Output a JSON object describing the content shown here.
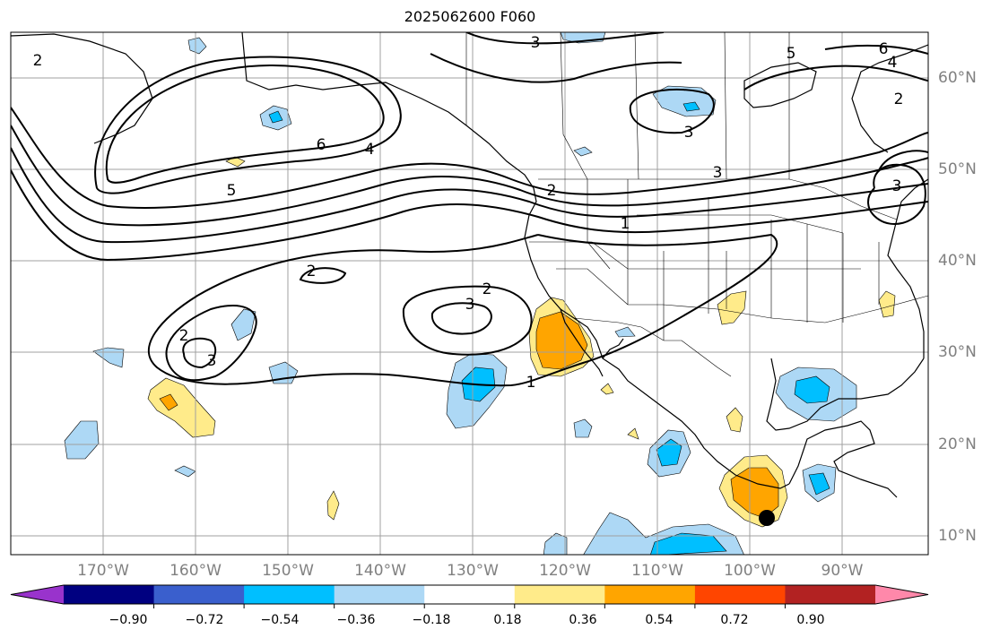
{
  "title": "2025062600 F060",
  "lat_labels": [
    "60°N",
    "50°N",
    "40°N",
    "30°N",
    "20°N",
    "10°N"
  ],
  "lon_labels": [
    "170°W",
    "160°W",
    "150°W",
    "140°W",
    "130°W",
    "120°W",
    "110°W",
    "100°W",
    "90°W"
  ],
  "contour_labels": [
    "1",
    "2",
    "3",
    "4",
    "5",
    "6"
  ],
  "colorbar": {
    "ticks": [
      "−0.90",
      "−0.72",
      "−0.54",
      "−0.36",
      "−0.18",
      "0.18",
      "0.36",
      "0.54",
      "0.72",
      "0.90"
    ],
    "colors": [
      "#9933cc",
      "#000080",
      "#3a5fcd",
      "#00bfff",
      "#add8f5",
      "#ffffff",
      "#ffeb8a",
      "#ffa500",
      "#ff4500",
      "#b22222",
      "#ff88aa"
    ]
  },
  "colors": {
    "contour": "#000000",
    "grid": "#a0a0a0",
    "pos_light": "#ffeb8a",
    "pos_mid": "#ffa500",
    "neg_light": "#add8f5",
    "neg_mid": "#00bfff",
    "marker": "#000000"
  },
  "marker": {
    "lat": 12,
    "lon": -96.5
  }
}
